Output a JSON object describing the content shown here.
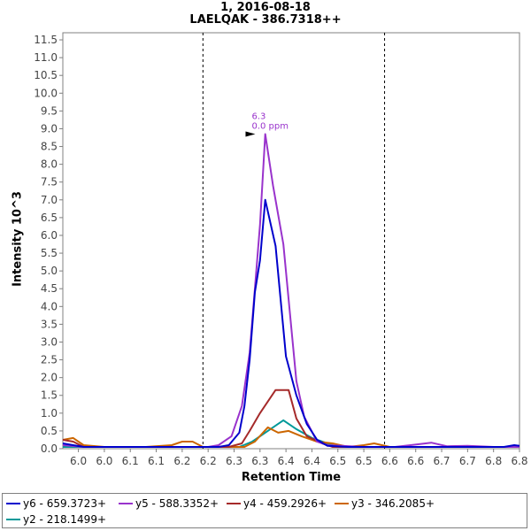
{
  "chart_data": {
    "type": "line",
    "title": "1, 2016-08-18",
    "subtitle": "LAELQAK - 386.7318++",
    "xlabel": "Retention Time",
    "ylabel": "Intensity 10^3",
    "xlim": [
      5.92,
      6.8
    ],
    "ylim": [
      0,
      11.7
    ],
    "xticks": [
      "6.0",
      "6.0",
      "6.1",
      "6.1",
      "6.2",
      "6.2",
      "6.3",
      "6.3",
      "6.4",
      "6.4",
      "6.5",
      "6.5",
      "6.6",
      "6.6",
      "6.7",
      "6.7",
      "6.8",
      "6.8"
    ],
    "yticks": [
      "0.0",
      "0.5",
      "1.0",
      "1.5",
      "2.0",
      "2.5",
      "3.0",
      "3.5",
      "4.0",
      "4.5",
      "5.0",
      "5.5",
      "6.0",
      "6.5",
      "7.0",
      "7.5",
      "8.0",
      "8.5",
      "9.0",
      "9.5",
      "10.0",
      "10.5",
      "11.0",
      "11.5"
    ],
    "integration_boundaries": [
      6.19,
      6.54
    ],
    "peak_annotation": {
      "rt": "6.3",
      "ppm": "0.0 ppm",
      "x": 6.296,
      "y": 8.85
    },
    "legend": [
      "y6 - 659.3723+",
      "y5 - 588.3352+",
      "y4 - 459.2926+",
      "y3 - 346.2085+",
      "y2 - 218.1499+"
    ],
    "series": [
      {
        "name": "y6 - 659.3723+",
        "color": "#0000cc",
        "points": [
          [
            5.92,
            0.15
          ],
          [
            5.94,
            0.1
          ],
          [
            5.96,
            0.05
          ],
          [
            6.0,
            0.05
          ],
          [
            6.04,
            0.05
          ],
          [
            6.1,
            0.05
          ],
          [
            6.2,
            0.05
          ],
          [
            6.22,
            0.05
          ],
          [
            6.24,
            0.1
          ],
          [
            6.26,
            0.45
          ],
          [
            6.27,
            1.2
          ],
          [
            6.28,
            2.5
          ],
          [
            6.29,
            4.4
          ],
          [
            6.3,
            5.3
          ],
          [
            6.31,
            7.0
          ],
          [
            6.33,
            5.7
          ],
          [
            6.35,
            2.6
          ],
          [
            6.37,
            1.5
          ],
          [
            6.39,
            0.7
          ],
          [
            6.41,
            0.25
          ],
          [
            6.43,
            0.08
          ],
          [
            6.47,
            0.05
          ],
          [
            6.52,
            0.05
          ],
          [
            6.55,
            0.05
          ],
          [
            6.6,
            0.05
          ],
          [
            6.7,
            0.05
          ],
          [
            6.77,
            0.05
          ],
          [
            6.79,
            0.1
          ],
          [
            6.8,
            0.08
          ]
        ]
      },
      {
        "name": "y5 - 588.3352+",
        "color": "#9933cc",
        "points": [
          [
            5.92,
            0.1
          ],
          [
            5.96,
            0.05
          ],
          [
            6.05,
            0.05
          ],
          [
            6.2,
            0.05
          ],
          [
            6.22,
            0.1
          ],
          [
            6.245,
            0.35
          ],
          [
            6.265,
            1.2
          ],
          [
            6.28,
            2.7
          ],
          [
            6.29,
            4.5
          ],
          [
            6.3,
            6.3
          ],
          [
            6.31,
            8.85
          ],
          [
            6.325,
            7.4
          ],
          [
            6.345,
            5.75
          ],
          [
            6.37,
            1.9
          ],
          [
            6.385,
            0.9
          ],
          [
            6.41,
            0.2
          ],
          [
            6.43,
            0.1
          ],
          [
            6.5,
            0.05
          ],
          [
            6.56,
            0.05
          ],
          [
            6.59,
            0.1
          ],
          [
            6.63,
            0.17
          ],
          [
            6.66,
            0.07
          ],
          [
            6.7,
            0.08
          ],
          [
            6.75,
            0.05
          ],
          [
            6.8,
            0.05
          ]
        ]
      },
      {
        "name": "y4 - 459.2926+",
        "color": "#a52a2a",
        "points": [
          [
            5.92,
            0.25
          ],
          [
            5.94,
            0.2
          ],
          [
            5.96,
            0.05
          ],
          [
            6.05,
            0.05
          ],
          [
            6.2,
            0.05
          ],
          [
            6.24,
            0.05
          ],
          [
            6.265,
            0.15
          ],
          [
            6.28,
            0.5
          ],
          [
            6.3,
            1.0
          ],
          [
            6.33,
            1.65
          ],
          [
            6.355,
            1.65
          ],
          [
            6.37,
            0.85
          ],
          [
            6.39,
            0.35
          ],
          [
            6.42,
            0.15
          ],
          [
            6.44,
            0.05
          ],
          [
            6.5,
            0.05
          ],
          [
            6.6,
            0.05
          ],
          [
            6.8,
            0.05
          ]
        ]
      },
      {
        "name": "y3 - 346.2085+",
        "color": "#cc6600",
        "points": [
          [
            5.92,
            0.25
          ],
          [
            5.94,
            0.3
          ],
          [
            5.96,
            0.1
          ],
          [
            6.0,
            0.05
          ],
          [
            6.08,
            0.05
          ],
          [
            6.13,
            0.1
          ],
          [
            6.15,
            0.2
          ],
          [
            6.17,
            0.2
          ],
          [
            6.19,
            0.05
          ],
          [
            6.24,
            0.05
          ],
          [
            6.27,
            0.05
          ],
          [
            6.29,
            0.2
          ],
          [
            6.315,
            0.6
          ],
          [
            6.335,
            0.45
          ],
          [
            6.355,
            0.5
          ],
          [
            6.38,
            0.35
          ],
          [
            6.41,
            0.2
          ],
          [
            6.44,
            0.15
          ],
          [
            6.47,
            0.05
          ],
          [
            6.5,
            0.1
          ],
          [
            6.52,
            0.15
          ],
          [
            6.55,
            0.05
          ],
          [
            6.6,
            0.05
          ],
          [
            6.8,
            0.05
          ]
        ]
      },
      {
        "name": "y2 - 218.1499+",
        "color": "#009999",
        "points": [
          [
            5.92,
            0.05
          ],
          [
            6.0,
            0.05
          ],
          [
            6.2,
            0.05
          ],
          [
            6.26,
            0.05
          ],
          [
            6.285,
            0.2
          ],
          [
            6.315,
            0.5
          ],
          [
            6.345,
            0.8
          ],
          [
            6.37,
            0.55
          ],
          [
            6.4,
            0.3
          ],
          [
            6.43,
            0.15
          ],
          [
            6.45,
            0.05
          ],
          [
            6.5,
            0.05
          ],
          [
            6.8,
            0.05
          ]
        ]
      }
    ]
  }
}
